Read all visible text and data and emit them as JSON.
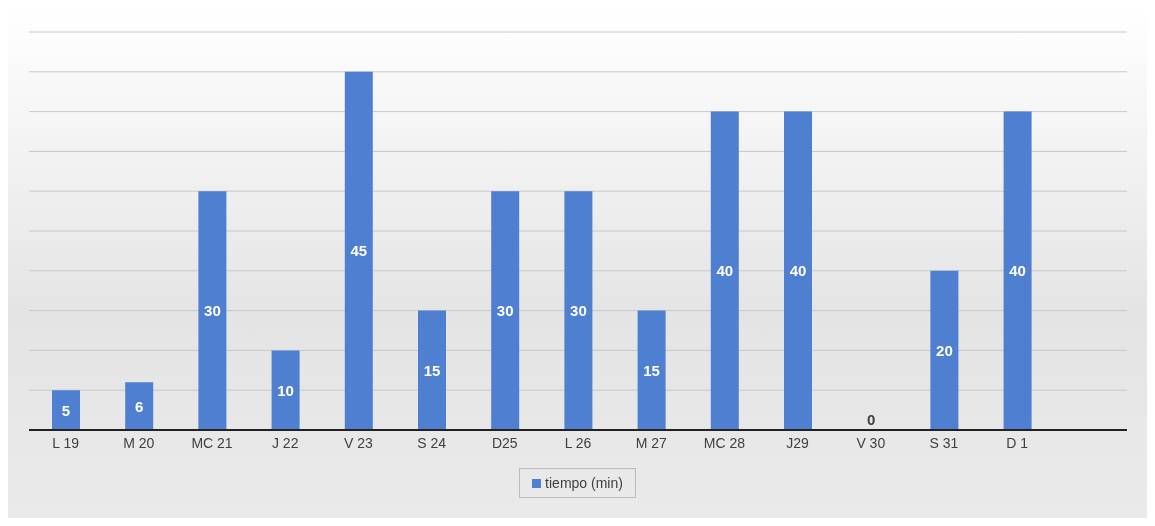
{
  "chart_data": {
    "type": "bar",
    "categories": [
      "L 19",
      "M 20",
      "MC 21",
      "J 22",
      "V 23",
      "S 24",
      "D25",
      "L 26",
      "M 27",
      "MC 28",
      "J29",
      "V 30",
      "S 31",
      "D 1",
      null
    ],
    "series": [
      {
        "name": "tiempo (min)",
        "color": "#4f7fd1",
        "values": [
          5,
          6,
          30,
          10,
          45,
          15,
          30,
          30,
          15,
          40,
          40,
          0,
          20,
          40,
          null
        ]
      }
    ],
    "ylim": [
      0,
      50
    ],
    "yticks": [
      {
        "value": 0,
        "label": null
      },
      {
        "value": 5,
        "label": null
      },
      {
        "value": 10,
        "label": null
      },
      {
        "value": 15,
        "label": null
      },
      {
        "value": 20,
        "label": null
      },
      {
        "value": 25,
        "label": null
      },
      {
        "value": 30,
        "label": null
      },
      {
        "value": 35,
        "label": null
      },
      {
        "value": 40,
        "label": null
      },
      {
        "value": 45,
        "label": null
      },
      {
        "value": 50,
        "label": null
      }
    ],
    "tick_labels": "x",
    "grid": "y",
    "legend": "bottom",
    "data_labels": true
  }
}
